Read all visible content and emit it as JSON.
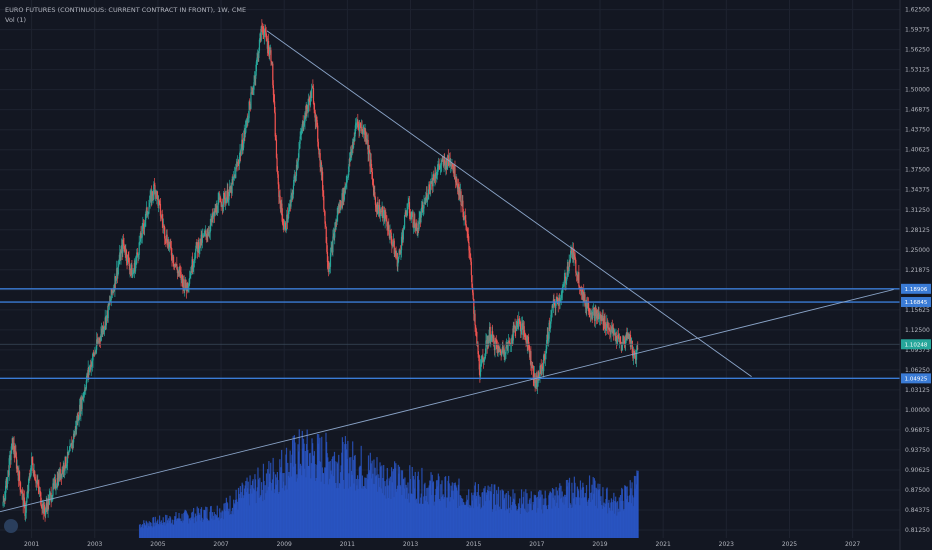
{
  "header": {
    "title": "EURO FUTURES (CONTINUOUS: CURRENT CONTRACT IN FRONT), 1W, CME",
    "indicator": "Vol (1)"
  },
  "colors": {
    "background": "#131722",
    "grid": "#1e2330",
    "up": "#26a69a",
    "down": "#ef5350",
    "volume": "#2a56c6",
    "level_line": "#3a7bd5",
    "trendline": "#8aa4c8",
    "price_badge": "#26a69a"
  },
  "icons": {
    "logo": "tradingview-cloud-icon"
  },
  "chart_data": {
    "type": "candlestick",
    "title": "EURO FUTURES (CONTINUOUS: CURRENT CONTRACT IN FRONT), 1W, CME",
    "x_tick_labels": [
      "2001",
      "2003",
      "2005",
      "2007",
      "2009",
      "2011",
      "2013",
      "2015",
      "2017",
      "2019",
      "2021",
      "2023",
      "2025",
      "2027"
    ],
    "y_tick_labels": [
      "1.62500",
      "1.59375",
      "1.56250",
      "1.53125",
      "1.50000",
      "1.46875",
      "1.43750",
      "1.40625",
      "1.37500",
      "1.34375",
      "1.31250",
      "1.28125",
      "1.25000",
      "1.21875",
      "1.18750",
      "1.15625",
      "1.12500",
      "1.09375",
      "1.06250",
      "1.03125",
      "1.00000",
      "0.96875",
      "0.93750",
      "0.90625",
      "0.87500",
      "0.84375",
      "0.81250"
    ],
    "ylim": [
      0.8,
      1.64
    ],
    "xlim": [
      2000.0,
      2028.5
    ],
    "price_path": [
      [
        2000.1,
        0.85
      ],
      [
        2000.4,
        0.95
      ],
      [
        2000.8,
        0.84
      ],
      [
        2001.0,
        0.92
      ],
      [
        2001.4,
        0.84
      ],
      [
        2001.8,
        0.89
      ],
      [
        2002.2,
        0.93
      ],
      [
        2002.8,
        1.06
      ],
      [
        2003.4,
        1.15
      ],
      [
        2003.9,
        1.26
      ],
      [
        2004.2,
        1.21
      ],
      [
        2004.6,
        1.3
      ],
      [
        2004.9,
        1.35
      ],
      [
        2005.2,
        1.28
      ],
      [
        2005.6,
        1.22
      ],
      [
        2005.9,
        1.19
      ],
      [
        2006.2,
        1.25
      ],
      [
        2006.6,
        1.28
      ],
      [
        2006.9,
        1.32
      ],
      [
        2007.3,
        1.34
      ],
      [
        2007.7,
        1.42
      ],
      [
        2008.0,
        1.5
      ],
      [
        2008.3,
        1.6
      ],
      [
        2008.6,
        1.55
      ],
      [
        2008.8,
        1.35
      ],
      [
        2009.0,
        1.28
      ],
      [
        2009.2,
        1.32
      ],
      [
        2009.6,
        1.45
      ],
      [
        2009.9,
        1.5
      ],
      [
        2010.2,
        1.36
      ],
      [
        2010.4,
        1.22
      ],
      [
        2010.7,
        1.31
      ],
      [
        2010.9,
        1.34
      ],
      [
        2011.3,
        1.45
      ],
      [
        2011.6,
        1.43
      ],
      [
        2011.9,
        1.32
      ],
      [
        2012.2,
        1.3
      ],
      [
        2012.6,
        1.23
      ],
      [
        2012.9,
        1.32
      ],
      [
        2013.2,
        1.28
      ],
      [
        2013.6,
        1.35
      ],
      [
        2013.9,
        1.38
      ],
      [
        2014.3,
        1.39
      ],
      [
        2014.6,
        1.33
      ],
      [
        2014.9,
        1.24
      ],
      [
        2015.0,
        1.15
      ],
      [
        2015.2,
        1.06
      ],
      [
        2015.5,
        1.12
      ],
      [
        2015.8,
        1.09
      ],
      [
        2016.1,
        1.1
      ],
      [
        2016.4,
        1.14
      ],
      [
        2016.7,
        1.11
      ],
      [
        2016.95,
        1.04
      ],
      [
        2017.2,
        1.07
      ],
      [
        2017.5,
        1.16
      ],
      [
        2017.8,
        1.18
      ],
      [
        2018.1,
        1.25
      ],
      [
        2018.3,
        1.21
      ],
      [
        2018.5,
        1.17
      ],
      [
        2018.8,
        1.15
      ],
      [
        2019.1,
        1.14
      ],
      [
        2019.4,
        1.12
      ],
      [
        2019.7,
        1.1
      ],
      [
        2019.9,
        1.12
      ],
      [
        2020.1,
        1.08
      ],
      [
        2020.2,
        1.1
      ]
    ],
    "horizontal_levels": [
      {
        "price": 1.18906,
        "label": "1.18906"
      },
      {
        "price": 1.16845,
        "label": "1.16845"
      },
      {
        "price": 1.04925,
        "label": "1.04925"
      }
    ],
    "current_price": {
      "price": 1.10248,
      "label": "1.10248"
    },
    "trendlines": [
      {
        "from": [
          2008.45,
          1.592
        ],
        "to": [
          2023.8,
          1.052
        ]
      },
      {
        "from": [
          2000.0,
          0.841
        ],
        "to": [
          2028.3,
          1.188
        ]
      }
    ],
    "volume": {
      "start": 2004.4,
      "end": 2020.2,
      "profile": [
        [
          2004.4,
          0.12
        ],
        [
          2007.0,
          0.25
        ],
        [
          2008.8,
          0.6
        ],
        [
          2009.5,
          0.75
        ],
        [
          2011.0,
          0.68
        ],
        [
          2012.5,
          0.52
        ],
        [
          2014.5,
          0.4
        ],
        [
          2016.0,
          0.35
        ],
        [
          2017.0,
          0.32
        ],
        [
          2018.5,
          0.45
        ],
        [
          2019.5,
          0.3
        ],
        [
          2020.2,
          0.48
        ]
      ]
    },
    "grid": true,
    "legend_placement": "top-left"
  }
}
